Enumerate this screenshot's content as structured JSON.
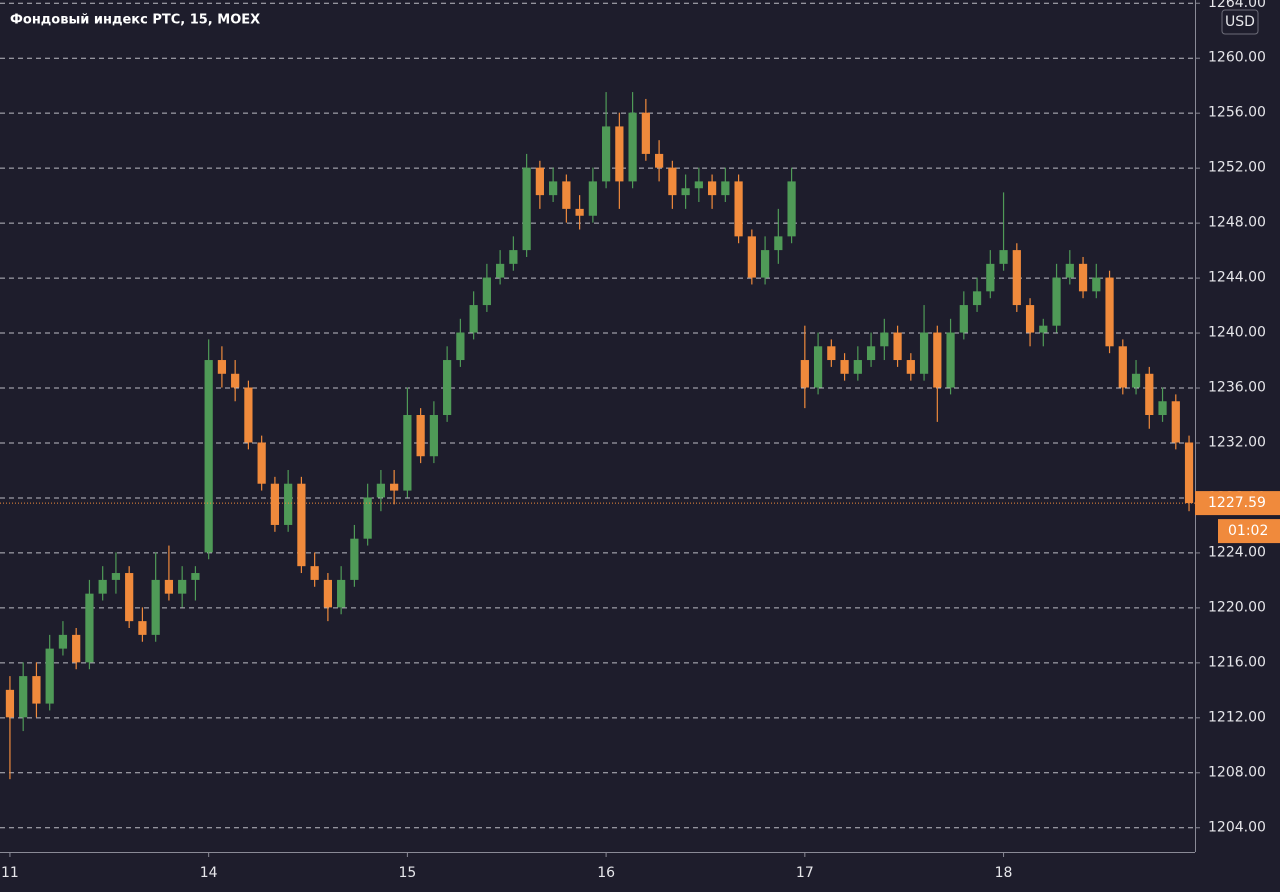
{
  "chart_data": {
    "type": "candlestick",
    "title": "Фондовый индекс РТС, 15, MOEX",
    "currency": "USD",
    "countdown": "01:02",
    "up_color": "#4f9a57",
    "down_color": "#f08a3c",
    "grid": true,
    "ylim": [
      1202.2,
      1264.2
    ],
    "yticks": [
      {
        "value": 1204,
        "label": "1204.00"
      },
      {
        "value": 1208,
        "label": "1208.00"
      },
      {
        "value": 1212,
        "label": "1212.00"
      },
      {
        "value": 1216,
        "label": "1216.00"
      },
      {
        "value": 1220,
        "label": "1220.00"
      },
      {
        "value": 1224,
        "label": "1224.00"
      },
      {
        "value": 1228,
        "label": "1228.00"
      },
      {
        "value": 1232,
        "label": "1232.00"
      },
      {
        "value": 1236,
        "label": "1236.00"
      },
      {
        "value": 1240,
        "label": "1240.00"
      },
      {
        "value": 1244,
        "label": "1244.00"
      },
      {
        "value": 1248,
        "label": "1248.00"
      },
      {
        "value": 1252,
        "label": "1252.00"
      },
      {
        "value": 1256,
        "label": "1256.00"
      },
      {
        "value": 1260,
        "label": "1260.00"
      },
      {
        "value": 1264,
        "label": "1264.00"
      }
    ],
    "xlim": [
      -0.75,
      89.45
    ],
    "xticks": [
      {
        "value": 0,
        "label": "11"
      },
      {
        "value": 15,
        "label": "14"
      },
      {
        "value": 30,
        "label": "15"
      },
      {
        "value": 45,
        "label": "16"
      },
      {
        "value": 60,
        "label": "17"
      },
      {
        "value": 75,
        "label": "18"
      }
    ],
    "candles": [
      [
        1214,
        1215,
        1207.5,
        1212
      ],
      [
        1212,
        1216,
        1211,
        1215
      ],
      [
        1215,
        1216,
        1212,
        1213
      ],
      [
        1213,
        1218,
        1212.5,
        1217
      ],
      [
        1217,
        1219,
        1216.5,
        1218
      ],
      [
        1218,
        1218.5,
        1215.5,
        1216
      ],
      [
        1216,
        1222,
        1215.5,
        1221
      ],
      [
        1221,
        1223,
        1220.5,
        1222
      ],
      [
        1222,
        1224,
        1221,
        1222.5
      ],
      [
        1222.5,
        1223,
        1218.5,
        1219
      ],
      [
        1219,
        1220,
        1217.5,
        1218
      ],
      [
        1218,
        1224,
        1217.5,
        1222
      ],
      [
        1222,
        1224.5,
        1220.5,
        1221
      ],
      [
        1221,
        1223,
        1220,
        1222
      ],
      [
        1222,
        1223,
        1220.5,
        1222.5
      ],
      [
        1224,
        1239.5,
        1223.5,
        1238
      ],
      [
        1238,
        1239,
        1236,
        1237
      ],
      [
        1237,
        1238,
        1235,
        1236
      ],
      [
        1236,
        1236.5,
        1231.5,
        1232
      ],
      [
        1232,
        1232.5,
        1228.5,
        1229
      ],
      [
        1229,
        1229.5,
        1225.5,
        1226
      ],
      [
        1226,
        1230,
        1225.5,
        1229
      ],
      [
        1229,
        1229.5,
        1222.5,
        1223
      ],
      [
        1223,
        1224,
        1221.5,
        1222
      ],
      [
        1222,
        1222.5,
        1219,
        1220
      ],
      [
        1220,
        1223,
        1219.5,
        1222
      ],
      [
        1222,
        1226,
        1221.5,
        1225
      ],
      [
        1225,
        1229,
        1224.5,
        1228
      ],
      [
        1228,
        1230,
        1227,
        1229
      ],
      [
        1229,
        1230,
        1227.5,
        1228.5
      ],
      [
        1228.5,
        1236,
        1228,
        1234
      ],
      [
        1234,
        1234.5,
        1230.5,
        1231
      ],
      [
        1231,
        1235,
        1230.5,
        1234
      ],
      [
        1234,
        1239,
        1233.5,
        1238
      ],
      [
        1238,
        1241,
        1237.5,
        1240
      ],
      [
        1240,
        1243,
        1239.5,
        1242
      ],
      [
        1242,
        1245,
        1241.5,
        1244
      ],
      [
        1244,
        1246,
        1243.5,
        1245
      ],
      [
        1245,
        1247,
        1244.5,
        1246
      ],
      [
        1246,
        1253,
        1245.5,
        1252
      ],
      [
        1252,
        1252.5,
        1249,
        1250
      ],
      [
        1250,
        1252,
        1249.5,
        1251
      ],
      [
        1251,
        1251.5,
        1248,
        1249
      ],
      [
        1249,
        1250,
        1247.5,
        1248.5
      ],
      [
        1248.5,
        1252,
        1248,
        1251
      ],
      [
        1251,
        1257.5,
        1250.5,
        1255
      ],
      [
        1255,
        1256,
        1249,
        1251
      ],
      [
        1251,
        1257.5,
        1250.5,
        1256
      ],
      [
        1256,
        1257,
        1252.5,
        1253
      ],
      [
        1253,
        1254,
        1251,
        1252
      ],
      [
        1252,
        1252.5,
        1249,
        1250
      ],
      [
        1250,
        1251.5,
        1249,
        1250.5
      ],
      [
        1250.5,
        1252,
        1249.5,
        1251
      ],
      [
        1251,
        1251.5,
        1249,
        1250
      ],
      [
        1250,
        1252,
        1249.5,
        1251
      ],
      [
        1251,
        1251.5,
        1246.5,
        1247
      ],
      [
        1247,
        1247.5,
        1243.5,
        1244
      ],
      [
        1244,
        1247,
        1243.5,
        1246
      ],
      [
        1246,
        1249,
        1245,
        1247
      ],
      [
        1247,
        1252,
        1246.5,
        1251
      ],
      [
        1238,
        1240.5,
        1234.5,
        1236
      ],
      [
        1236,
        1240,
        1235.5,
        1239
      ],
      [
        1239,
        1239.5,
        1237.5,
        1238
      ],
      [
        1238,
        1238.5,
        1236.5,
        1237
      ],
      [
        1237,
        1239,
        1236.5,
        1238
      ],
      [
        1238,
        1240,
        1237.5,
        1239
      ],
      [
        1239,
        1241,
        1238,
        1240
      ],
      [
        1240,
        1240.5,
        1237.5,
        1238
      ],
      [
        1238,
        1238.5,
        1236.5,
        1237
      ],
      [
        1237,
        1242,
        1236.5,
        1240
      ],
      [
        1240,
        1240.5,
        1233.5,
        1236
      ],
      [
        1236,
        1241,
        1235.5,
        1240
      ],
      [
        1240,
        1243,
        1239.5,
        1242
      ],
      [
        1242,
        1244,
        1241.5,
        1243
      ],
      [
        1243,
        1246,
        1242.5,
        1245
      ],
      [
        1245,
        1250.2,
        1244.5,
        1246
      ],
      [
        1246,
        1246.5,
        1241.5,
        1242
      ],
      [
        1242,
        1242.5,
        1239,
        1240
      ],
      [
        1240,
        1241,
        1239,
        1240.5
      ],
      [
        1240.5,
        1245,
        1240,
        1244
      ],
      [
        1244,
        1246,
        1243.5,
        1245
      ],
      [
        1245,
        1245.5,
        1242.5,
        1243
      ],
      [
        1243,
        1245,
        1242.5,
        1244
      ],
      [
        1244,
        1244.5,
        1238.5,
        1239
      ],
      [
        1239,
        1239.5,
        1235.5,
        1236
      ],
      [
        1236,
        1238,
        1235.5,
        1237
      ],
      [
        1237,
        1237.5,
        1233,
        1234
      ],
      [
        1234,
        1236,
        1233.5,
        1235
      ],
      [
        1235,
        1235.5,
        1231.5,
        1232
      ],
      [
        1232,
        1232.5,
        1227,
        1227.59
      ]
    ]
  }
}
